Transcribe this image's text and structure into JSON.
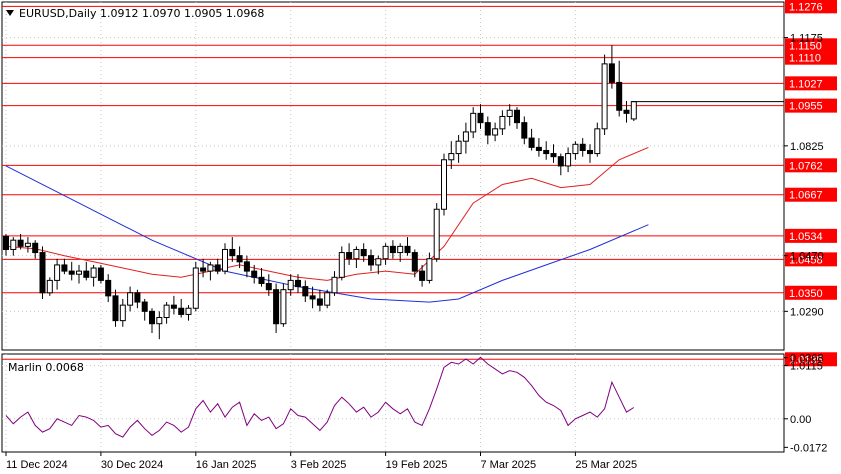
{
  "header": {
    "symbol_line": "EURUSD,Daily  1.0912 1.0970 1.0905 1.0968"
  },
  "chart_data": {
    "type": "candlestick",
    "symbol": "EURUSD",
    "timeframe": "Daily",
    "ohlc_last": {
      "open": 1.0912,
      "high": 1.097,
      "low": 1.0905,
      "close": 1.0968
    },
    "ylim": [
      1.0165,
      1.129
    ],
    "price_axis_ticks": [
      "1.1175",
      "1.0825",
      "1.0470",
      "1.0290",
      "1.0115"
    ],
    "x_ticks": [
      "11 Dec 2024",
      "30 Dec 2024",
      "16 Jan 2025",
      "3 Feb 2025",
      "19 Feb 2025",
      "7 Mar 2025",
      "25 Mar 2025"
    ],
    "levels": [
      {
        "label": "1.1276",
        "value": 1.1276
      },
      {
        "label": "1.1150",
        "value": 1.115
      },
      {
        "label": "1.1110",
        "value": 1.111
      },
      {
        "label": "1.1027",
        "value": 1.1027
      },
      {
        "label": "1.0955",
        "value": 1.0955
      },
      {
        "label": "1.0762",
        "value": 1.0762
      },
      {
        "label": "1.0667",
        "value": 1.0667
      },
      {
        "label": "1.0534",
        "value": 1.0534
      },
      {
        "label": "1.0458",
        "value": 1.0458
      },
      {
        "label": "1.0350",
        "value": 1.035
      },
      {
        "label": "1.0135",
        "value": 1.0135
      }
    ],
    "level_color": "#ff0000",
    "level_label_bg": "#ff0000",
    "candles": [
      [
        1.0532,
        1.054,
        1.047,
        1.049
      ],
      [
        1.049,
        1.053,
        1.047,
        1.052
      ],
      [
        1.052,
        1.054,
        1.049,
        1.05
      ],
      [
        1.05,
        1.053,
        1.048,
        1.051
      ],
      [
        1.051,
        1.052,
        1.046,
        1.048
      ],
      [
        1.048,
        1.05,
        1.033,
        1.035
      ],
      [
        1.035,
        1.04,
        1.034,
        1.039
      ],
      [
        1.039,
        1.046,
        1.036,
        1.044
      ],
      [
        1.044,
        1.046,
        1.041,
        1.042
      ],
      [
        1.042,
        1.045,
        1.039,
        1.041
      ],
      [
        1.041,
        1.044,
        1.038,
        1.042
      ],
      [
        1.042,
        1.045,
        1.039,
        1.04
      ],
      [
        1.04,
        1.044,
        1.037,
        1.043
      ],
      [
        1.043,
        1.044,
        1.038,
        1.039
      ],
      [
        1.039,
        1.041,
        1.032,
        1.034
      ],
      [
        1.034,
        1.036,
        1.024,
        1.026
      ],
      [
        1.026,
        1.033,
        1.024,
        1.031
      ],
      [
        1.031,
        1.037,
        1.029,
        1.035
      ],
      [
        1.035,
        1.036,
        1.03,
        1.032
      ],
      [
        1.032,
        1.033,
        1.026,
        1.029
      ],
      [
        1.029,
        1.03,
        1.022,
        1.025
      ],
      [
        1.025,
        1.029,
        1.02,
        1.027
      ],
      [
        1.027,
        1.032,
        1.025,
        1.031
      ],
      [
        1.031,
        1.034,
        1.028,
        1.03
      ],
      [
        1.03,
        1.033,
        1.027,
        1.028
      ],
      [
        1.028,
        1.031,
        1.026,
        1.03
      ],
      [
        1.03,
        1.045,
        1.029,
        1.043
      ],
      [
        1.043,
        1.046,
        1.04,
        1.042
      ],
      [
        1.042,
        1.045,
        1.039,
        1.044
      ],
      [
        1.044,
        1.046,
        1.041,
        1.042
      ],
      [
        1.042,
        1.051,
        1.041,
        1.049
      ],
      [
        1.049,
        1.053,
        1.045,
        1.047
      ],
      [
        1.047,
        1.05,
        1.043,
        1.045
      ],
      [
        1.045,
        1.047,
        1.04,
        1.042
      ],
      [
        1.042,
        1.044,
        1.038,
        1.04
      ],
      [
        1.04,
        1.043,
        1.037,
        1.038
      ],
      [
        1.038,
        1.041,
        1.034,
        1.036
      ],
      [
        1.036,
        1.038,
        1.022,
        1.025
      ],
      [
        1.025,
        1.038,
        1.024,
        1.036
      ],
      [
        1.036,
        1.041,
        1.034,
        1.039
      ],
      [
        1.039,
        1.041,
        1.035,
        1.037
      ],
      [
        1.037,
        1.039,
        1.032,
        1.034
      ],
      [
        1.034,
        1.037,
        1.03,
        1.033
      ],
      [
        1.033,
        1.036,
        1.029,
        1.031
      ],
      [
        1.031,
        1.036,
        1.03,
        1.035
      ],
      [
        1.035,
        1.042,
        1.034,
        1.04
      ],
      [
        1.04,
        1.05,
        1.039,
        1.048
      ],
      [
        1.048,
        1.051,
        1.044,
        1.046
      ],
      [
        1.046,
        1.05,
        1.043,
        1.049
      ],
      [
        1.049,
        1.051,
        1.045,
        1.047
      ],
      [
        1.047,
        1.049,
        1.042,
        1.044
      ],
      [
        1.044,
        1.047,
        1.041,
        1.046
      ],
      [
        1.046,
        1.051,
        1.044,
        1.05
      ],
      [
        1.05,
        1.052,
        1.046,
        1.048
      ],
      [
        1.048,
        1.051,
        1.045,
        1.05
      ],
      [
        1.05,
        1.053,
        1.047,
        1.048
      ],
      [
        1.048,
        1.049,
        1.04,
        1.042
      ],
      [
        1.042,
        1.044,
        1.037,
        1.039
      ],
      [
        1.039,
        1.048,
        1.038,
        1.046
      ],
      [
        1.046,
        1.064,
        1.045,
        1.062
      ],
      [
        1.062,
        1.08,
        1.06,
        1.078
      ],
      [
        1.078,
        1.084,
        1.075,
        1.08
      ],
      [
        1.08,
        1.086,
        1.077,
        1.084
      ],
      [
        1.084,
        1.09,
        1.08,
        1.087
      ],
      [
        1.087,
        1.095,
        1.085,
        1.093
      ],
      [
        1.093,
        1.096,
        1.088,
        1.09
      ],
      [
        1.09,
        1.092,
        1.083,
        1.086
      ],
      [
        1.086,
        1.09,
        1.084,
        1.088
      ],
      [
        1.088,
        1.094,
        1.086,
        1.092
      ],
      [
        1.092,
        1.096,
        1.089,
        1.094
      ],
      [
        1.094,
        1.095,
        1.088,
        1.09
      ],
      [
        1.09,
        1.092,
        1.083,
        1.085
      ],
      [
        1.085,
        1.088,
        1.081,
        1.082
      ],
      [
        1.082,
        1.085,
        1.079,
        1.081
      ],
      [
        1.081,
        1.084,
        1.078,
        1.08
      ],
      [
        1.08,
        1.083,
        1.077,
        1.079
      ],
      [
        1.079,
        1.08,
        1.073,
        1.076
      ],
      [
        1.076,
        1.082,
        1.074,
        1.08
      ],
      [
        1.08,
        1.084,
        1.078,
        1.083
      ],
      [
        1.083,
        1.085,
        1.079,
        1.081
      ],
      [
        1.081,
        1.083,
        1.077,
        1.08
      ],
      [
        1.08,
        1.09,
        1.079,
        1.088
      ],
      [
        1.088,
        1.112,
        1.086,
        1.109
      ],
      [
        1.109,
        1.115,
        1.101,
        1.103
      ],
      [
        1.103,
        1.11,
        1.092,
        1.094
      ],
      [
        1.094,
        1.097,
        1.09,
        1.093
      ],
      [
        1.0912,
        1.097,
        1.0905,
        1.0968
      ]
    ],
    "ma_red": [
      [
        0,
        1.05
      ],
      [
        4,
        1.0492
      ],
      [
        8,
        1.047
      ],
      [
        12,
        1.045
      ],
      [
        16,
        1.043
      ],
      [
        20,
        1.041
      ],
      [
        24,
        1.04
      ],
      [
        28,
        1.042
      ],
      [
        32,
        1.044
      ],
      [
        36,
        1.042
      ],
      [
        40,
        1.04
      ],
      [
        44,
        1.039
      ],
      [
        48,
        1.041
      ],
      [
        52,
        1.042
      ],
      [
        56,
        1.041
      ],
      [
        60,
        1.05
      ],
      [
        64,
        1.064
      ],
      [
        68,
        1.07
      ],
      [
        72,
        1.072
      ],
      [
        76,
        1.069
      ],
      [
        80,
        1.07
      ],
      [
        84,
        1.078
      ],
      [
        88,
        1.082
      ]
    ],
    "ma_blue": [
      [
        0,
        1.076
      ],
      [
        10,
        1.064
      ],
      [
        20,
        1.052
      ],
      [
        30,
        1.042
      ],
      [
        40,
        1.037
      ],
      [
        50,
        1.033
      ],
      [
        58,
        1.032
      ],
      [
        62,
        1.033
      ],
      [
        68,
        1.039
      ],
      [
        74,
        1.044
      ],
      [
        80,
        1.049
      ],
      [
        88,
        1.057
      ]
    ],
    "oscillator": {
      "label": "Marlin 0.0068",
      "value": 0.0068,
      "ylim": [
        -0.02,
        0.039
      ],
      "ticks": [
        "0.0368",
        "0.00",
        "-0.0172"
      ],
      "color": "#800080",
      "values": [
        0.002,
        -0.003,
        0.001,
        0.004,
        -0.004,
        -0.008,
        -0.006,
        0.0,
        -0.002,
        -0.004,
        0.002,
        0.001,
        -0.001,
        -0.005,
        -0.004,
        -0.009,
        -0.011,
        -0.005,
        -0.001,
        -0.006,
        -0.01,
        -0.007,
        -0.002,
        -0.004,
        -0.008,
        -0.005,
        0.006,
        0.011,
        0.004,
        0.009,
        0.001,
        0.007,
        0.01,
        -0.004,
        0.003,
        -0.001,
        0.001,
        -0.006,
        -0.003,
        0.006,
        0.002,
        0.001,
        -0.003,
        -0.007,
        -0.002,
        0.008,
        0.013,
        0.009,
        0.004,
        0.007,
        0.001,
        0.004,
        0.01,
        0.006,
        0.003,
        0.006,
        -0.002,
        -0.004,
        0.006,
        0.018,
        0.031,
        0.034,
        0.033,
        0.036,
        0.033,
        0.037,
        0.033,
        0.03,
        0.027,
        0.029,
        0.028,
        0.025,
        0.02,
        0.014,
        0.01,
        0.008,
        0.005,
        -0.004,
        0.0,
        0.002,
        0.004,
        0.001,
        0.006,
        0.022,
        0.013,
        0.004,
        0.0068
      ]
    },
    "current_price_marker": 1.0968
  }
}
